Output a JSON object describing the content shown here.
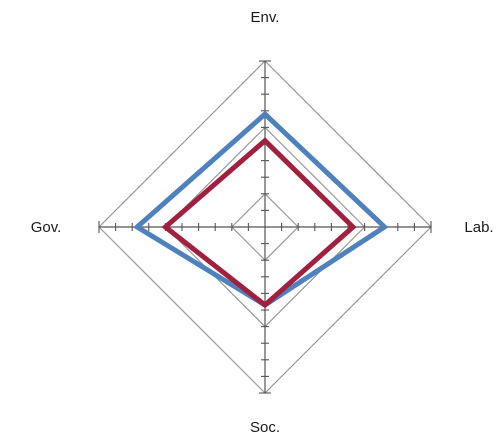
{
  "chart_data": {
    "type": "radar",
    "axes": [
      "Env.",
      "Lab.",
      "Soc.",
      "Gov."
    ],
    "range": [
      0,
      1
    ],
    "grid_levels": [
      0.2,
      0.6,
      1.0
    ],
    "ticks_per_axis": 10,
    "series": [
      {
        "values": [
          0.68,
          0.72,
          0.47,
          0.77
        ],
        "color": "#4f81bd"
      },
      {
        "values": [
          0.52,
          0.53,
          0.47,
          0.6
        ],
        "color": "#a0203e"
      }
    ],
    "grid_color": "#999999",
    "axis_color": "#555555"
  }
}
